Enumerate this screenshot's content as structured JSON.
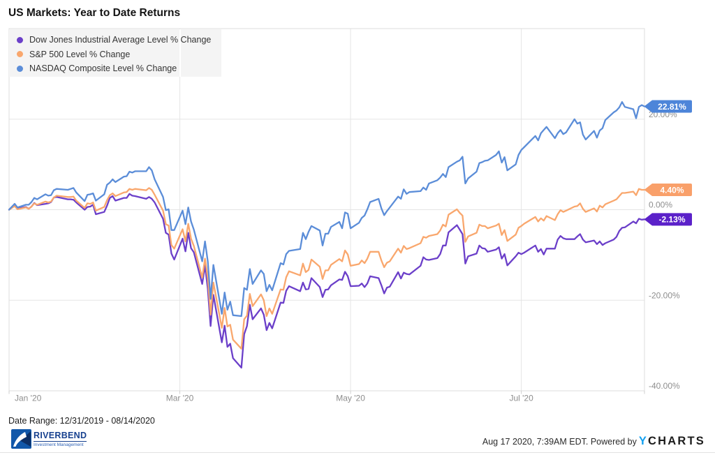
{
  "title": "US Markets: Year to Date Returns",
  "footer": {
    "date_range": "Date Range: 12/31/2019 - 08/14/2020",
    "attribution": "Aug 17 2020, 7:39AM EDT. Powered by",
    "ycharts_y": "Y",
    "ycharts_rest": "CHARTS"
  },
  "logo": {
    "name": "RIVERBEND",
    "subtitle": "Investment Management"
  },
  "chart_data": {
    "type": "line",
    "title": "US Markets: Year to Date Returns",
    "x_axis": {
      "unit": "days since 2019-12-31",
      "range_days": [
        0,
        227
      ],
      "ticks": [
        {
          "day": 1,
          "label": "Jan '20"
        },
        {
          "day": 61,
          "label": "Mar '20"
        },
        {
          "day": 122,
          "label": "May '20"
        },
        {
          "day": 183,
          "label": "Jul '20"
        }
      ]
    },
    "y_axis": {
      "range": [
        -40,
        40
      ],
      "ticks": [
        {
          "value": 20,
          "label": "20.00%"
        },
        {
          "value": 0,
          "label": "0.00%"
        },
        {
          "value": -20,
          "label": "-20.00%"
        },
        {
          "value": -40,
          "label": "-40.00%"
        }
      ]
    },
    "x_days": [
      0,
      2,
      3,
      6,
      7,
      8,
      9,
      10,
      13,
      14,
      15,
      16,
      17,
      21,
      22,
      23,
      24,
      27,
      28,
      29,
      30,
      31,
      34,
      35,
      36,
      37,
      38,
      41,
      42,
      43,
      44,
      45,
      49,
      50,
      51,
      52,
      55,
      56,
      57,
      58,
      59,
      62,
      63,
      64,
      65,
      66,
      69,
      70,
      71,
      72,
      73,
      76,
      77,
      78,
      79,
      80,
      83,
      84,
      85,
      86,
      87,
      90,
      91,
      92,
      93,
      94,
      97,
      98,
      99,
      100,
      104,
      105,
      106,
      107,
      108,
      111,
      112,
      113,
      114,
      115,
      118,
      119,
      120,
      121,
      122,
      125,
      126,
      127,
      128,
      129,
      132,
      133,
      134,
      135,
      136,
      139,
      140,
      141,
      142,
      143,
      147,
      148,
      149,
      150,
      153,
      154,
      155,
      156,
      157,
      160,
      161,
      162,
      163,
      164,
      167,
      168,
      169,
      170,
      171,
      174,
      175,
      176,
      177,
      178,
      181,
      182,
      183,
      184,
      188,
      189,
      190,
      191,
      192,
      195,
      196,
      197,
      198,
      199,
      202,
      203,
      204,
      205,
      206,
      209,
      210,
      211,
      212,
      213,
      216,
      217,
      218,
      219,
      220,
      223,
      224,
      225,
      226,
      227
    ],
    "series": [
      {
        "name": "Dow Jones Industrial Average Level % Change",
        "color": "#6b3fc9",
        "pill_color": "#5b21c9",
        "end_label": "-2.13%",
        "values": [
          0,
          1.2,
          0.3,
          0.6,
          0.2,
          0.7,
          1.5,
          1.0,
          1.3,
          1.4,
          1.7,
          2.7,
          2.8,
          2.3,
          2.3,
          2.2,
          1.6,
          0.0,
          0.6,
          0.7,
          1.1,
          -1.0,
          -0.5,
          0.9,
          2.6,
          3.0,
          2.0,
          2.6,
          2.6,
          3.5,
          3.1,
          3.0,
          2.4,
          2.8,
          2.4,
          1.6,
          -2.0,
          -5.1,
          -5.5,
          -9.7,
          -11.0,
          -6.4,
          -9.2,
          -5.1,
          -8.5,
          -9.4,
          -16.4,
          -12.3,
          -17.5,
          -25.7,
          -18.8,
          -29.3,
          -25.6,
          -30.3,
          -29.6,
          -32.8,
          -34.9,
          -27.5,
          -25.7,
          -21.0,
          -24.2,
          -21.8,
          -23.2,
          -26.6,
          -25.0,
          -26.2,
          -20.5,
          -20.6,
          -17.9,
          -16.9,
          -18.0,
          -16.1,
          -17.6,
          -17.5,
          -15.1,
          -17.1,
          -19.3,
          -17.7,
          -17.6,
          -16.7,
          -15.4,
          -15.5,
          -13.7,
          -14.7,
          -16.9,
          -16.8,
          -16.3,
          -17.1,
          -16.3,
          -14.7,
          -15.1,
          -16.7,
          -18.5,
          -17.2,
          -17.0,
          -13.8,
          -15.2,
          -13.9,
          -14.2,
          -14.3,
          -12.4,
          -10.5,
          -11.0,
          -11.1,
          -10.7,
          -9.8,
          -7.9,
          -7.9,
          -5.0,
          -3.4,
          -4.4,
          -5.4,
          -11.9,
          -10.3,
          -9.7,
          -7.9,
          -8.5,
          -8.6,
          -9.3,
          -8.8,
          -8.3,
          -10.8,
          -9.8,
          -12.3,
          -10.3,
          -9.5,
          -9.8,
          -9.5,
          -7.9,
          -9.3,
          -8.7,
          -9.9,
          -8.6,
          -8.6,
          -6.6,
          -5.8,
          -6.3,
          -6.5,
          -6.5,
          -5.9,
          -5.4,
          -6.6,
          -7.2,
          -6.8,
          -7.6,
          -7.0,
          -7.8,
          -7.4,
          -6.6,
          -6.0,
          -4.7,
          -4.0,
          -3.9,
          -2.6,
          -3.0,
          -2.0,
          -2.2,
          -2.13
        ]
      },
      {
        "name": "S&P 500 Level % Change",
        "color": "#f9a76d",
        "pill_color": "#f9a06a",
        "end_label": "4.40%",
        "values": [
          0,
          0.8,
          0.1,
          0.5,
          0.2,
          0.7,
          1.4,
          1.1,
          1.8,
          1.6,
          1.8,
          2.7,
          3.1,
          2.8,
          2.8,
          2.9,
          2.0,
          0.4,
          1.4,
          1.3,
          1.6,
          -0.2,
          0.6,
          2.1,
          3.2,
          3.6,
          3.0,
          3.8,
          3.9,
          4.6,
          4.4,
          4.6,
          4.3,
          4.8,
          4.4,
          3.3,
          -0.2,
          -3.2,
          -3.5,
          -7.8,
          -8.6,
          -4.3,
          -7.0,
          -3.1,
          -6.4,
          -8.0,
          -15.0,
          -10.8,
          -15.1,
          -23.2,
          -16.1,
          -26.1,
          -21.7,
          -25.8,
          -25.4,
          -28.7,
          -30.7,
          -24.2,
          -23.4,
          -18.6,
          -21.3,
          -18.7,
          -20.0,
          -23.5,
          -21.8,
          -23.0,
          -17.6,
          -17.7,
          -14.9,
          -13.6,
          -14.5,
          -11.9,
          -13.8,
          -13.3,
          -11.0,
          -12.6,
          -15.3,
          -13.4,
          -13.4,
          -12.2,
          -10.9,
          -11.4,
          -9.0,
          -9.9,
          -12.4,
          -12.0,
          -11.2,
          -11.8,
          -10.8,
          -9.3,
          -9.3,
          -11.2,
          -12.7,
          -11.7,
          -11.4,
          -8.6,
          -9.5,
          -8.0,
          -8.7,
          -8.5,
          -7.4,
          -6.0,
          -6.2,
          -5.8,
          -5.4,
          -4.6,
          -3.3,
          -3.7,
          -1.1,
          0.1,
          -0.7,
          -1.3,
          -7.1,
          -5.9,
          -5.1,
          -3.3,
          -3.6,
          -3.6,
          -4.1,
          -3.5,
          -3.1,
          -5.6,
          -4.5,
          -6.9,
          -5.5,
          -4.0,
          -3.6,
          -3.1,
          -1.6,
          -2.6,
          -1.9,
          -2.4,
          -1.4,
          -2.3,
          -1.0,
          -0.1,
          -0.5,
          -0.2,
          0.7,
          0.8,
          1.4,
          0.2,
          -0.5,
          0.3,
          -0.4,
          0.9,
          0.5,
          1.2,
          2.0,
          2.3,
          3.0,
          3.7,
          3.7,
          4.0,
          3.2,
          4.6,
          4.4,
          4.4
        ]
      },
      {
        "name": "NASDAQ Composite Level % Change",
        "color": "#5b8dd8",
        "pill_color": "#4d85d9",
        "end_label": "22.81%",
        "values": [
          0,
          1.3,
          0.5,
          1.1,
          1.1,
          1.7,
          2.6,
          2.3,
          3.4,
          3.1,
          3.2,
          4.3,
          4.6,
          4.4,
          4.6,
          4.8,
          3.8,
          1.9,
          3.3,
          3.4,
          3.6,
          2.0,
          3.4,
          5.5,
          6.0,
          6.7,
          6.1,
          7.3,
          7.4,
          8.4,
          8.2,
          8.5,
          8.5,
          9.4,
          8.7,
          6.7,
          2.8,
          -0.1,
          0.1,
          -4.5,
          -4.5,
          -0.2,
          -3.2,
          0.5,
          -2.6,
          -4.4,
          -11.4,
          -7.0,
          -11.4,
          -19.7,
          -12.2,
          -23.0,
          -18.3,
          -22.1,
          -20.3,
          -23.3,
          -23.5,
          -17.3,
          -17.7,
          -13.1,
          -16.4,
          -13.4,
          -14.2,
          -18.0,
          -16.6,
          -17.8,
          -11.8,
          -12.1,
          -9.8,
          -9.1,
          -8.7,
          -5.1,
          -6.5,
          -4.9,
          -3.6,
          -4.6,
          -7.9,
          -5.3,
          -5.3,
          -3.8,
          -2.7,
          -4.1,
          -0.6,
          -0.9,
          -4.1,
          -2.9,
          -1.8,
          -1.3,
          0.1,
          1.7,
          2.4,
          0.3,
          -1.2,
          -0.3,
          0.5,
          2.9,
          2.4,
          4.5,
          3.5,
          3.9,
          4.1,
          4.9,
          4.4,
          5.8,
          6.5,
          7.1,
          7.9,
          7.2,
          9.4,
          10.6,
          10.9,
          11.7,
          5.8,
          6.9,
          8.4,
          10.3,
          10.5,
          10.8,
          10.9,
          12.1,
          12.9,
          10.4,
          11.6,
          8.7,
          10.0,
          12.1,
          13.2,
          13.8,
          16.3,
          15.3,
          16.9,
          17.6,
          18.3,
          15.8,
          16.9,
          17.6,
          16.7,
          17.1,
          20.0,
          19.0,
          19.3,
          16.6,
          15.5,
          17.4,
          15.9,
          17.5,
          18.0,
          19.8,
          21.5,
          21.9,
          22.6,
          23.8,
          22.7,
          22.2,
          20.2,
          22.7,
          23.1,
          22.81
        ]
      }
    ]
  }
}
